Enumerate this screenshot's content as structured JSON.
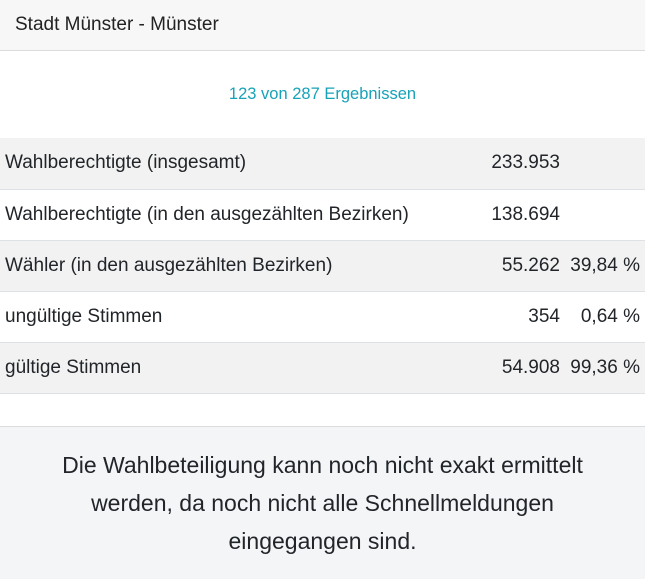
{
  "header": {
    "title": "Stadt Münster - Münster"
  },
  "results": {
    "count_text": "123 von 287 Ergebnissen"
  },
  "stats": {
    "rows": [
      {
        "label": "Wahlberechtigte (insgesamt)",
        "value": "233.953",
        "percent": ""
      },
      {
        "label": "Wahlberechtigte (in den ausgezählten Bezirken)",
        "value": "138.694",
        "percent": ""
      },
      {
        "label": "Wähler (in den ausgezählten Bezirken)",
        "value": "55.262",
        "percent": "39,84 %"
      },
      {
        "label": "ungültige Stimmen",
        "value": "354",
        "percent": "0,64 %"
      },
      {
        "label": "gültige Stimmen",
        "value": "54.908",
        "percent": "99,36 %"
      }
    ]
  },
  "notice": {
    "text": "Die Wahlbeteiligung kann noch nicht exakt ermittelt werden, da noch nicht alle Schnellmeldungen eingegangen sind."
  },
  "colors": {
    "accent": "#17a2b8",
    "stripe": "#f2f2f2",
    "notice_bg": "#f4f5f7"
  }
}
